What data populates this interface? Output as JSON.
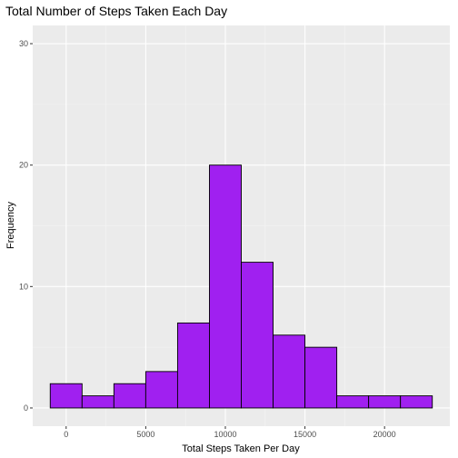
{
  "chart_data": {
    "type": "bar",
    "subtype": "histogram",
    "title": "Total Number of Steps Taken Each Day",
    "xlabel": "Total Steps Taken Per Day",
    "ylabel": "Frequency",
    "bin_width": 2000,
    "bins": [
      {
        "start": -1000,
        "end": 1000,
        "count": 2
      },
      {
        "start": 1000,
        "end": 3000,
        "count": 1
      },
      {
        "start": 3000,
        "end": 5000,
        "count": 2
      },
      {
        "start": 5000,
        "end": 7000,
        "count": 3
      },
      {
        "start": 7000,
        "end": 9000,
        "count": 7
      },
      {
        "start": 9000,
        "end": 11000,
        "count": 20
      },
      {
        "start": 11000,
        "end": 13000,
        "count": 12
      },
      {
        "start": 13000,
        "end": 15000,
        "count": 6
      },
      {
        "start": 15000,
        "end": 17000,
        "count": 5
      },
      {
        "start": 17000,
        "end": 19000,
        "count": 1
      },
      {
        "start": 19000,
        "end": 21000,
        "count": 1
      },
      {
        "start": 21000,
        "end": 23000,
        "count": 1
      }
    ],
    "xlim": [
      -2100,
      24100
    ],
    "ylim": [
      -1.5,
      31.5
    ],
    "x_ticks": [
      0,
      5000,
      10000,
      15000,
      20000
    ],
    "x_tick_labels": [
      "0",
      "5000",
      "10000",
      "15000",
      "20000"
    ],
    "y_ticks": [
      0,
      10,
      20,
      30
    ],
    "y_tick_labels": [
      "0",
      "10",
      "20",
      "30"
    ],
    "grid": true,
    "colors": {
      "bar_fill": "#a020f0",
      "bar_stroke": "#000000",
      "panel_bg": "#ebebeb",
      "grid_major": "#ffffff",
      "grid_minor": "#f5f5f5"
    }
  }
}
